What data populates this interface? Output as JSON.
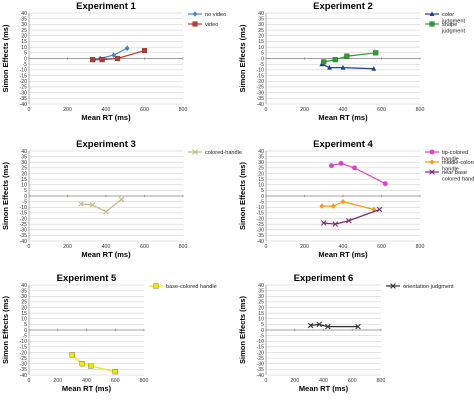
{
  "chart_data": [
    {
      "type": "line",
      "title": "Experiment 1",
      "xlabel": "Mean RT (ms)",
      "ylabel": "Simon Effects (ms)",
      "xlim": [
        0,
        800
      ],
      "ylim": [
        -40,
        40
      ],
      "xticks": [
        0,
        200,
        400,
        600,
        800
      ],
      "yticks": [
        -40,
        -35,
        -30,
        -25,
        -20,
        -15,
        -10,
        -5,
        0,
        5,
        10,
        15,
        20,
        25,
        30,
        35,
        40
      ],
      "legend_position": "top-right",
      "series": [
        {
          "name": "no video",
          "color": "#4f81bd",
          "marker": "diamond",
          "points": [
            [
              340,
              -1
            ],
            [
              370,
              0
            ],
            [
              440,
              3
            ],
            [
              510,
              9
            ]
          ]
        },
        {
          "name": "video",
          "color": "#c0392b",
          "marker": "square",
          "points": [
            [
              330,
              -1
            ],
            [
              380,
              -1
            ],
            [
              460,
              0
            ],
            [
              600,
              7
            ]
          ]
        }
      ]
    },
    {
      "type": "line",
      "title": "Experiment 2",
      "xlabel": "Mean RT (ms)",
      "ylabel": "Simon Effects (ms)",
      "xlim": [
        0,
        800
      ],
      "ylim": [
        -40,
        40
      ],
      "xticks": [
        0,
        200,
        400,
        600,
        800
      ],
      "yticks": [
        -40,
        -35,
        -30,
        -25,
        -20,
        -15,
        -10,
        -5,
        0,
        5,
        10,
        15,
        20,
        25,
        30,
        35,
        40
      ],
      "legend_position": "top-right",
      "series": [
        {
          "name": "color judgment",
          "color": "#1f3f8f",
          "marker": "triangle",
          "points": [
            [
              290,
              -5
            ],
            [
              330,
              -8
            ],
            [
              400,
              -8
            ],
            [
              560,
              -9
            ]
          ]
        },
        {
          "name": "shape judgment",
          "color": "#2ca02c",
          "marker": "square",
          "points": [
            [
              300,
              -3
            ],
            [
              360,
              -1
            ],
            [
              420,
              2
            ],
            [
              570,
              5
            ]
          ]
        }
      ]
    },
    {
      "type": "line",
      "title": "Experiment 3",
      "xlabel": "Mean RT (ms)",
      "ylabel": "Simon Effects (ms)",
      "xlim": [
        0,
        800
      ],
      "ylim": [
        -40,
        40
      ],
      "xticks": [
        0,
        200,
        400,
        600,
        800
      ],
      "yticks": [
        -40,
        -35,
        -30,
        -25,
        -20,
        -15,
        -10,
        -5,
        0,
        5,
        10,
        15,
        20,
        25,
        30,
        35,
        40
      ],
      "legend_position": "top-right",
      "series": [
        {
          "name": "colored-handle",
          "color": "#c9b887",
          "marker": "x",
          "points": [
            [
              270,
              -7
            ],
            [
              330,
              -8
            ],
            [
              400,
              -14
            ],
            [
              480,
              -3
            ]
          ]
        }
      ]
    },
    {
      "type": "line",
      "title": "Experiment 4",
      "xlabel": "Mean RT (ms)",
      "ylabel": "Simon Effects (ms)",
      "xlim": [
        0,
        800
      ],
      "ylim": [
        -40,
        40
      ],
      "xticks": [
        0,
        200,
        400,
        600,
        800
      ],
      "yticks": [
        -40,
        -35,
        -30,
        -25,
        -20,
        -15,
        -10,
        -5,
        0,
        5,
        10,
        15,
        20,
        25,
        30,
        35,
        40
      ],
      "legend_position": "top-right",
      "series": [
        {
          "name": "tip-colored handle",
          "color": "#e040c8",
          "marker": "circle",
          "points": [
            [
              340,
              27
            ],
            [
              390,
              29
            ],
            [
              460,
              25
            ],
            [
              620,
              11
            ]
          ]
        },
        {
          "name": "middle-colored handle",
          "color": "#f39c12",
          "marker": "diamond",
          "points": [
            [
              290,
              -9
            ],
            [
              350,
              -9
            ],
            [
              400,
              -5
            ],
            [
              560,
              -12
            ]
          ]
        },
        {
          "name": "near base colored handle",
          "color": "#7b2d6f",
          "marker": "x",
          "points": [
            [
              300,
              -24
            ],
            [
              360,
              -25
            ],
            [
              430,
              -22
            ],
            [
              590,
              -12
            ]
          ]
        }
      ]
    },
    {
      "type": "line",
      "title": "Experiment 5",
      "xlabel": "Mean RT (ms)",
      "ylabel": "Simon Effects (ms)",
      "xlim": [
        0,
        800
      ],
      "ylim": [
        -40,
        40
      ],
      "xticks": [
        0,
        200,
        400,
        600,
        800
      ],
      "yticks": [
        -40,
        -35,
        -30,
        -25,
        -20,
        -15,
        -10,
        -5,
        0,
        5,
        10,
        15,
        20,
        25,
        30,
        35,
        40
      ],
      "legend_position": "top-right",
      "series": [
        {
          "name": "base-colored handle",
          "color": "#f5e400",
          "marker": "square",
          "points": [
            [
              300,
              -22
            ],
            [
              370,
              -30
            ],
            [
              430,
              -32
            ],
            [
              600,
              -37
            ]
          ]
        }
      ]
    },
    {
      "type": "line",
      "title": "Experiment 6",
      "xlabel": "Mean RT (ms)",
      "ylabel": "Simon Effects (ms)",
      "xlim": [
        0,
        800
      ],
      "ylim": [
        -40,
        40
      ],
      "xticks": [
        0,
        200,
        400,
        600,
        800
      ],
      "yticks": [
        -40,
        -35,
        -30,
        -25,
        -20,
        -15,
        -10,
        -5,
        0,
        5,
        10,
        15,
        20,
        25,
        30,
        35,
        40
      ],
      "legend_position": "top-right",
      "series": [
        {
          "name": "orientation judgment",
          "color": "#333333",
          "marker": "x",
          "points": [
            [
              310,
              4
            ],
            [
              370,
              5
            ],
            [
              430,
              3
            ],
            [
              640,
              3
            ]
          ]
        }
      ]
    }
  ]
}
